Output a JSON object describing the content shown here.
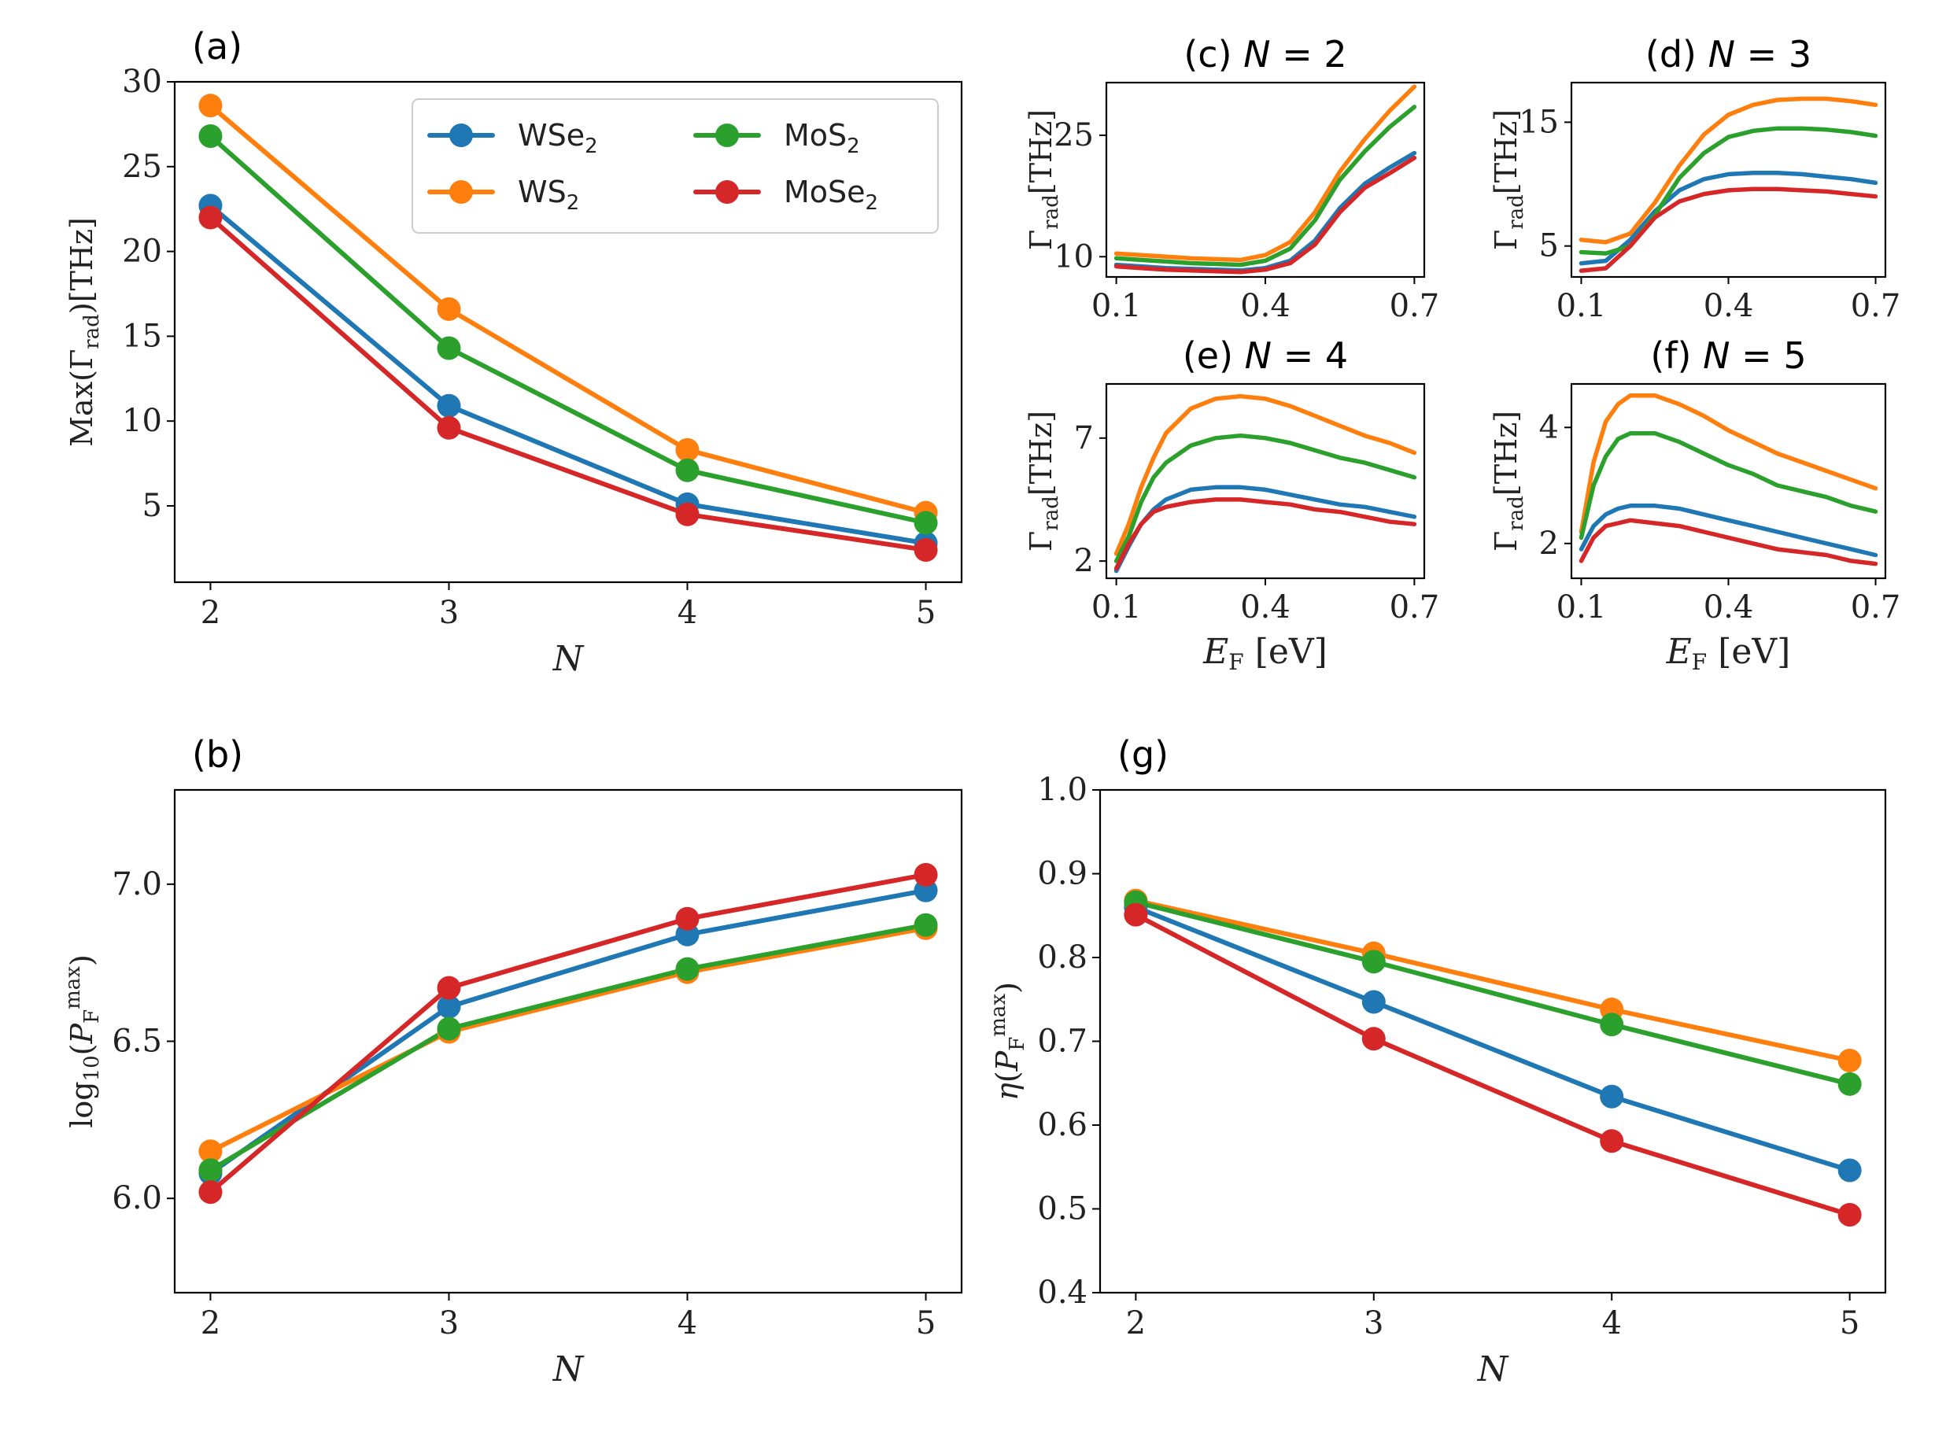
{
  "chart_data": [
    {
      "id": "a",
      "panel_label": "(a)",
      "type": "line",
      "title": "",
      "xlabel": "N",
      "ylabel": "Max(Γrad)[THz]",
      "xlim": [
        1.85,
        5.15
      ],
      "ylim": [
        0.5,
        30
      ],
      "xticks": [
        2,
        3,
        4,
        5
      ],
      "yticks": [
        5,
        10,
        15,
        20,
        25,
        30
      ],
      "x": [
        2,
        3,
        4,
        5
      ],
      "series": [
        {
          "name": "WSe2",
          "color": "#1f77b4",
          "values": [
            22.7,
            10.9,
            5.1,
            2.8
          ]
        },
        {
          "name": "WS2",
          "color": "#ff7f0e",
          "values": [
            28.6,
            16.6,
            8.3,
            4.6
          ]
        },
        {
          "name": "MoS2",
          "color": "#2ca02c",
          "values": [
            26.8,
            14.3,
            7.1,
            4.0
          ]
        },
        {
          "name": "MoSe2",
          "color": "#d62728",
          "values": [
            22.0,
            9.6,
            4.5,
            2.4
          ]
        }
      ],
      "legend": {
        "placement": "upper-right",
        "columns": 2,
        "entries": [
          {
            "base": "WSe",
            "sub": "2",
            "color": "#1f77b4"
          },
          {
            "base": "WS",
            "sub": "2",
            "color": "#ff7f0e"
          },
          {
            "base": "MoS",
            "sub": "2",
            "color": "#2ca02c"
          },
          {
            "base": "MoSe",
            "sub": "2",
            "color": "#d62728"
          }
        ]
      }
    },
    {
      "id": "b",
      "panel_label": "(b)",
      "type": "line",
      "title": "",
      "xlabel": "N",
      "ylabel": "log10(PFmax)",
      "xlim": [
        1.85,
        5.15
      ],
      "ylim": [
        5.7,
        7.3
      ],
      "xticks": [
        2,
        3,
        4,
        5
      ],
      "yticks": [
        6.0,
        6.5,
        7.0
      ],
      "x": [
        2,
        3,
        4,
        5
      ],
      "series": [
        {
          "name": "WSe2",
          "color": "#1f77b4",
          "values": [
            6.08,
            6.61,
            6.84,
            6.98
          ]
        },
        {
          "name": "WS2",
          "color": "#ff7f0e",
          "values": [
            6.15,
            6.53,
            6.72,
            6.86
          ]
        },
        {
          "name": "MoS2",
          "color": "#2ca02c",
          "values": [
            6.09,
            6.54,
            6.73,
            6.87
          ]
        },
        {
          "name": "MoSe2",
          "color": "#d62728",
          "values": [
            6.02,
            6.67,
            6.89,
            7.03
          ]
        }
      ]
    },
    {
      "id": "g",
      "panel_label": "(g)",
      "type": "line",
      "title": "",
      "xlabel": "N",
      "ylabel": "η(PFmax)",
      "xlim": [
        1.85,
        5.15
      ],
      "ylim": [
        0.4,
        1.0
      ],
      "xticks": [
        2,
        3,
        4,
        5
      ],
      "yticks": [
        0.4,
        0.5,
        0.6,
        0.7,
        0.8,
        0.9,
        1.0
      ],
      "x": [
        2,
        3,
        4,
        5
      ],
      "series": [
        {
          "name": "WSe2",
          "color": "#1f77b4",
          "values": [
            0.86,
            0.747,
            0.634,
            0.546
          ]
        },
        {
          "name": "WS2",
          "color": "#ff7f0e",
          "values": [
            0.868,
            0.805,
            0.738,
            0.677
          ]
        },
        {
          "name": "MoS2",
          "color": "#2ca02c",
          "values": [
            0.866,
            0.795,
            0.72,
            0.649
          ]
        },
        {
          "name": "MoSe2",
          "color": "#d62728",
          "values": [
            0.851,
            0.703,
            0.581,
            0.493
          ]
        }
      ]
    },
    {
      "id": "c",
      "panel_label": "",
      "type": "line",
      "title": "(c) N = 2",
      "title_prefix": "(c) ",
      "title_var": "N",
      "title_suffix": " = 2",
      "xlabel": "",
      "ylabel": "Γrad[THz]",
      "xlim": [
        0.08,
        0.72
      ],
      "ylim": [
        7.5,
        31.5
      ],
      "xticks": [
        0.1,
        0.4,
        0.7
      ],
      "xticklabels": [
        "0.1",
        "0.4",
        "0.7"
      ],
      "yticks": [
        10,
        25
      ],
      "x": [
        0.1,
        0.15,
        0.2,
        0.25,
        0.3,
        0.35,
        0.4,
        0.45,
        0.5,
        0.55,
        0.6,
        0.65,
        0.7
      ],
      "series": [
        {
          "name": "WSe2",
          "color": "#1f77b4",
          "values": [
            9.0,
            8.8,
            8.6,
            8.5,
            8.4,
            8.3,
            8.6,
            9.5,
            12.0,
            16.0,
            19.0,
            21.0,
            22.8
          ]
        },
        {
          "name": "WS2",
          "color": "#ff7f0e",
          "values": [
            10.4,
            10.2,
            10.0,
            9.8,
            9.7,
            9.6,
            10.2,
            11.8,
            15.5,
            20.5,
            24.5,
            28.0,
            31.0
          ]
        },
        {
          "name": "MoS2",
          "color": "#2ca02c",
          "values": [
            9.8,
            9.6,
            9.4,
            9.2,
            9.1,
            9.0,
            9.5,
            11.0,
            14.5,
            19.5,
            23.0,
            26.0,
            28.5
          ]
        },
        {
          "name": "MoSe2",
          "color": "#d62728",
          "values": [
            8.8,
            8.6,
            8.4,
            8.3,
            8.2,
            8.1,
            8.4,
            9.2,
            11.5,
            15.5,
            18.5,
            20.3,
            22.2
          ]
        }
      ]
    },
    {
      "id": "d",
      "panel_label": "",
      "type": "line",
      "title": "(d) N = 3",
      "title_prefix": "(d) ",
      "title_var": "N",
      "title_suffix": " = 3",
      "xlabel": "",
      "ylabel": "Γrad[THz]",
      "xlim": [
        0.08,
        0.72
      ],
      "ylim": [
        2.5,
        18.2
      ],
      "xticks": [
        0.1,
        0.4,
        0.7
      ],
      "xticklabels": [
        "0.1",
        "0.4",
        "0.7"
      ],
      "yticks": [
        5,
        15
      ],
      "x": [
        0.1,
        0.15,
        0.2,
        0.25,
        0.3,
        0.35,
        0.4,
        0.45,
        0.5,
        0.55,
        0.6,
        0.65,
        0.7
      ],
      "series": [
        {
          "name": "WSe2",
          "color": "#1f77b4",
          "values": [
            3.6,
            3.8,
            5.5,
            7.8,
            9.5,
            10.4,
            10.8,
            10.9,
            10.9,
            10.8,
            10.6,
            10.4,
            10.1
          ]
        },
        {
          "name": "WS2",
          "color": "#ff7f0e",
          "values": [
            5.5,
            5.3,
            6.0,
            8.5,
            11.5,
            14.0,
            15.6,
            16.4,
            16.8,
            16.9,
            16.9,
            16.7,
            16.4
          ]
        },
        {
          "name": "MoS2",
          "color": "#2ca02c",
          "values": [
            4.5,
            4.4,
            5.0,
            7.5,
            10.5,
            12.5,
            13.8,
            14.3,
            14.5,
            14.5,
            14.4,
            14.2,
            13.9
          ]
        },
        {
          "name": "MoSe2",
          "color": "#d62728",
          "values": [
            3.0,
            3.2,
            5.0,
            7.3,
            8.6,
            9.2,
            9.5,
            9.6,
            9.6,
            9.5,
            9.4,
            9.2,
            9.0
          ]
        }
      ]
    },
    {
      "id": "e",
      "panel_label": "",
      "type": "line",
      "title": "(e) N = 4",
      "title_prefix": "(e) ",
      "title_var": "N",
      "title_suffix": " = 4",
      "xlabel": "EF [eV]",
      "ylabel": "Γrad[THz]",
      "xlim": [
        0.08,
        0.72
      ],
      "ylim": [
        1.3,
        9.2
      ],
      "xticks": [
        0.1,
        0.4,
        0.7
      ],
      "xticklabels": [
        "0.1",
        "0.4",
        "0.7"
      ],
      "yticks": [
        2,
        7
      ],
      "x": [
        0.1,
        0.125,
        0.15,
        0.175,
        0.2,
        0.25,
        0.3,
        0.35,
        0.4,
        0.45,
        0.5,
        0.55,
        0.6,
        0.65,
        0.7
      ],
      "series": [
        {
          "name": "WSe2",
          "color": "#1f77b4",
          "values": [
            1.6,
            2.6,
            3.5,
            4.1,
            4.5,
            4.9,
            5.0,
            5.0,
            4.9,
            4.7,
            4.5,
            4.3,
            4.2,
            4.0,
            3.8
          ]
        },
        {
          "name": "WS2",
          "color": "#ff7f0e",
          "values": [
            2.3,
            3.5,
            5.0,
            6.2,
            7.2,
            8.2,
            8.6,
            8.7,
            8.6,
            8.3,
            7.9,
            7.5,
            7.1,
            6.8,
            6.4
          ]
        },
        {
          "name": "MoS2",
          "color": "#2ca02c",
          "values": [
            2.0,
            3.0,
            4.4,
            5.4,
            6.0,
            6.7,
            7.0,
            7.1,
            7.0,
            6.8,
            6.5,
            6.2,
            6.0,
            5.7,
            5.4
          ]
        },
        {
          "name": "MoSe2",
          "color": "#d62728",
          "values": [
            1.7,
            2.7,
            3.5,
            4.0,
            4.2,
            4.4,
            4.5,
            4.5,
            4.4,
            4.3,
            4.1,
            4.0,
            3.8,
            3.6,
            3.5
          ]
        }
      ]
    },
    {
      "id": "f",
      "panel_label": "",
      "type": "line",
      "title": "(f) N = 5",
      "title_prefix": "(f) ",
      "title_var": "N",
      "title_suffix": " = 5",
      "xlabel": "EF [eV]",
      "ylabel": "Γrad[THz]",
      "xlim": [
        0.08,
        0.72
      ],
      "ylim": [
        1.4,
        4.75
      ],
      "xticks": [
        0.1,
        0.4,
        0.7
      ],
      "xticklabels": [
        "0.1",
        "0.4",
        "0.7"
      ],
      "yticks": [
        2,
        4
      ],
      "x": [
        0.1,
        0.125,
        0.15,
        0.175,
        0.2,
        0.25,
        0.3,
        0.35,
        0.4,
        0.45,
        0.5,
        0.55,
        0.6,
        0.65,
        0.7
      ],
      "series": [
        {
          "name": "WSe2",
          "color": "#1f77b4",
          "values": [
            1.9,
            2.3,
            2.5,
            2.6,
            2.65,
            2.65,
            2.6,
            2.5,
            2.4,
            2.3,
            2.2,
            2.1,
            2.0,
            1.9,
            1.8
          ]
        },
        {
          "name": "WS2",
          "color": "#ff7f0e",
          "values": [
            2.2,
            3.4,
            4.1,
            4.4,
            4.55,
            4.55,
            4.4,
            4.2,
            3.95,
            3.75,
            3.55,
            3.4,
            3.25,
            3.1,
            2.95
          ]
        },
        {
          "name": "MoS2",
          "color": "#2ca02c",
          "values": [
            2.1,
            3.0,
            3.5,
            3.8,
            3.9,
            3.9,
            3.75,
            3.55,
            3.35,
            3.2,
            3.0,
            2.9,
            2.8,
            2.65,
            2.55
          ]
        },
        {
          "name": "MoSe2",
          "color": "#d62728",
          "values": [
            1.7,
            2.1,
            2.3,
            2.35,
            2.4,
            2.35,
            2.3,
            2.2,
            2.1,
            2.0,
            1.9,
            1.85,
            1.8,
            1.7,
            1.65
          ]
        }
      ]
    }
  ]
}
